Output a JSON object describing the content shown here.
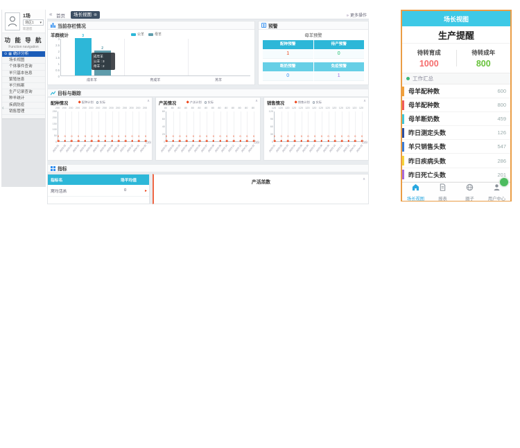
{
  "desktop": {
    "sidebar": {
      "user": {
        "name": "1场",
        "farm_select": "场区1",
        "caret": "▾",
        "welcome": "欢迎您"
      },
      "nav_title_cn": "功 能 导 航",
      "nav_title_en": "Function navigation",
      "items": [
        {
          "label": "统计分析",
          "selected": true
        },
        {
          "label": "场长视图",
          "selected": false
        },
        {
          "label": "个体事件查询",
          "selected": false
        },
        {
          "label": "羊只基本信息",
          "selected": false
        },
        {
          "label": "繁殖信息",
          "selected": false
        },
        {
          "label": "羊只档案",
          "selected": false
        },
        {
          "label": "生产记录查询",
          "selected": false
        },
        {
          "label": "种羊统计",
          "selected": false
        },
        {
          "label": "疾病防疫",
          "selected": false
        },
        {
          "label": "销售管理",
          "selected": false
        }
      ]
    },
    "topbar": {
      "back_icon": "«",
      "home_tab": "首页",
      "active_tab": "场长视图",
      "close_icon": "⊗",
      "more_icon": "»",
      "more_label": "更多操作"
    },
    "panels": {
      "stock": {
        "title": "当前存栏情况"
      },
      "alerts": {
        "title": "预警",
        "subtitle": "母羊预警",
        "groups": [
          {
            "header_bg": "#2db7d8",
            "cells": [
              {
                "header": "配种预警",
                "value": "1",
                "color": "#ed4014"
              },
              {
                "header": "待产预警",
                "value": "0",
                "color": "#19be6b"
              }
            ]
          },
          {
            "header_bg": "#66cfe6",
            "cells": [
              {
                "header": "断奶预警",
                "value": "0",
                "color": "#2d8cf0"
              },
              {
                "header": "免疫预警",
                "value": "1",
                "color": "#9a66e4"
              }
            ]
          }
        ]
      },
      "tracking": {
        "title": "目标与跟踪"
      },
      "indicators": {
        "title": "指标",
        "table": {
          "header_bg": "#2db7d8",
          "headers": [
            "指标名",
            "场平均值"
          ],
          "rows": [
            {
              "label": "窝均活羔",
              "value": "0",
              "flag": true
            }
          ]
        },
        "right_card_title": "产活羔数",
        "collapse_icon": "∧"
      }
    }
  },
  "chart_data": [
    {
      "id": "stock-bar",
      "type": "bar",
      "title": "羊群统计",
      "categories": [
        "成年羊",
        "育成羊",
        "羔羊"
      ],
      "series": [
        {
          "name": "公羊",
          "color": "#2db7d8",
          "values": [
            3,
            0,
            0
          ]
        },
        {
          "name": "母羊",
          "color": "#5f9cab",
          "values": [
            2,
            0,
            0
          ]
        }
      ],
      "ylim": [
        0,
        3
      ],
      "yticks": [
        "3",
        "2.5",
        "2",
        "1.5",
        "1",
        "0.5",
        "0"
      ],
      "legend_position": "top",
      "grid": true,
      "tooltip": {
        "title": "成年羊",
        "lines": [
          "公羊 : 3",
          "母羊 : 2"
        ]
      }
    },
    {
      "id": "breeding",
      "type": "line",
      "title": "配种情况",
      "xlabel": "月份",
      "x": [
        "2023-01",
        "2023-02",
        "2023-03",
        "2023-04",
        "2023-05",
        "2023-06",
        "2023-07",
        "2023-08",
        "2023-09",
        "2023-10",
        "2023-11",
        "2023-12",
        "2024-01",
        "2024-02"
      ],
      "series": [
        {
          "name": "配种计划",
          "color": "#ed4014",
          "marker": "diamond",
          "values": [
            0,
            0,
            0,
            0,
            0,
            0,
            0,
            0,
            0,
            0,
            0,
            0,
            0,
            0
          ],
          "labels_at": "bottom"
        },
        {
          "name": "实际",
          "color": "#9aa5b1",
          "marker": "circle",
          "values": [
            200,
            200,
            200,
            200,
            200,
            200,
            200,
            200,
            200,
            200,
            200,
            200,
            200,
            200
          ],
          "labels_at": "top"
        }
      ],
      "yticks": [
        "250",
        "200",
        "150",
        "100",
        "50",
        "0"
      ],
      "collapse_icon": "∧"
    },
    {
      "id": "lambing",
      "type": "line",
      "title": "产羔情况",
      "xlabel": "月份",
      "x": [
        "2023-01",
        "2023-02",
        "2023-03",
        "2023-04",
        "2023-05",
        "2023-06",
        "2023-07",
        "2023-08",
        "2023-09",
        "2023-10",
        "2023-11",
        "2023-12",
        "2024-01",
        "2024-02"
      ],
      "series": [
        {
          "name": "产羔计划",
          "color": "#ed4014",
          "marker": "diamond",
          "values": [
            0,
            0,
            0,
            0,
            0,
            0,
            0,
            0,
            0,
            0,
            0,
            0,
            0,
            0
          ],
          "labels_at": "bottom"
        },
        {
          "name": "实际",
          "color": "#9aa5b1",
          "marker": "circle",
          "values": [
            80,
            80,
            80,
            80,
            80,
            80,
            80,
            80,
            80,
            80,
            80,
            80,
            80,
            80
          ],
          "labels_at": "top"
        }
      ],
      "yticks": [
        "80",
        "60",
        "40",
        "20",
        "0"
      ],
      "collapse_icon": "∧"
    },
    {
      "id": "sales",
      "type": "line",
      "title": "销售情况",
      "xlabel": "月份",
      "x": [
        "2023-01",
        "2023-02",
        "2023-03",
        "2023-04",
        "2023-05",
        "2023-06",
        "2023-07",
        "2023-08",
        "2023-09",
        "2023-10",
        "2023-11",
        "2023-12",
        "2024-01",
        "2024-02"
      ],
      "series": [
        {
          "name": "销售计划",
          "color": "#ed4014",
          "marker": "diamond",
          "values": [
            0,
            0,
            0,
            0,
            0,
            0,
            0,
            0,
            0,
            0,
            0,
            0,
            0,
            0
          ],
          "labels_at": "bottom"
        },
        {
          "name": "实际",
          "color": "#9aa5b1",
          "marker": "circle",
          "values": [
            120,
            120,
            120,
            120,
            120,
            120,
            120,
            120,
            120,
            120,
            120,
            120,
            120,
            120
          ],
          "labels_at": "top"
        }
      ],
      "yticks": [
        "120",
        "90",
        "60",
        "30",
        "0"
      ],
      "collapse_icon": "∧"
    }
  ],
  "mobile": {
    "header": "场长视图",
    "title": "生产提醒",
    "stats": [
      {
        "label": "待转育成",
        "value": "1000",
        "color": "#f56c6c"
      },
      {
        "label": "待转成年",
        "value": "800",
        "color": "#67c23a"
      }
    ],
    "section_label": "工作汇总",
    "rows": [
      {
        "label": "母羊配种数",
        "value": "600",
        "color": "#f0a13c"
      },
      {
        "label": "母羊配种数",
        "value": "800",
        "color": "#ef5b5b"
      },
      {
        "label": "母羊断奶数",
        "value": "459",
        "color": "#41c8d8"
      },
      {
        "label": "昨日测定头数",
        "value": "126",
        "color": "#2b4ea0"
      },
      {
        "label": "羊只销售头数",
        "value": "547",
        "color": "#3a7bd5"
      },
      {
        "label": "昨日疾病头数",
        "value": "286",
        "color": "#f5d33c"
      },
      {
        "label": "昨日死亡头数",
        "value": "201",
        "color": "#a86ad8"
      }
    ],
    "nav": [
      {
        "label": "场长视图",
        "icon": "home-icon",
        "active": true
      },
      {
        "label": "报表",
        "icon": "report-icon",
        "active": false
      },
      {
        "label": "圈子",
        "icon": "circle-icon",
        "active": false
      },
      {
        "label": "用户中心",
        "icon": "user-icon",
        "active": false
      }
    ],
    "nav_active_color": "#2aa8e0",
    "nav_inactive_color": "#8a9199"
  }
}
